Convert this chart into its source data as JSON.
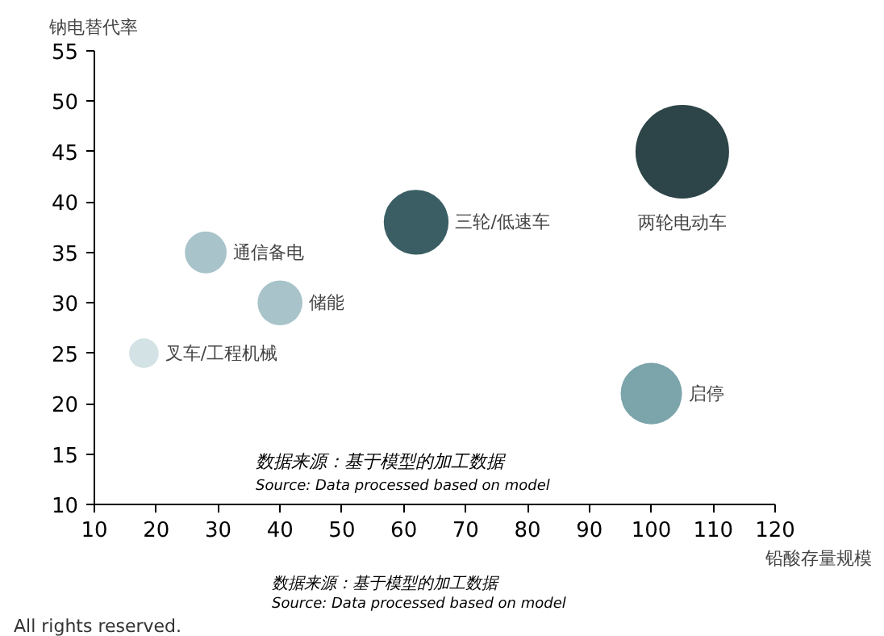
{
  "chart_data": {
    "type": "bubble",
    "ylabel": "钠电替代率",
    "xlabel": "铅酸存量规模",
    "xlim": [
      10,
      120
    ],
    "ylim": [
      10,
      55
    ],
    "xticks": [
      10,
      20,
      30,
      40,
      50,
      60,
      70,
      80,
      90,
      100,
      110,
      120
    ],
    "yticks": [
      10,
      15,
      20,
      25,
      30,
      35,
      40,
      45,
      50,
      55
    ],
    "grid": false,
    "series": [
      {
        "name": "叉车/工程机械",
        "color": "#d3e2e5",
        "x": [
          18
        ],
        "values": [
          25
        ],
        "sizes": [
          0.1
        ]
      },
      {
        "name": "通信备电",
        "color": "#a8c4ca",
        "x": [
          28
        ],
        "values": [
          35
        ],
        "sizes": [
          0.2
        ]
      },
      {
        "name": "储能",
        "color": "#a8c4ca",
        "x": [
          40
        ],
        "values": [
          30
        ],
        "sizes": [
          0.23
        ]
      },
      {
        "name": "三轮/低速车",
        "color": "#3a5e64",
        "x": [
          62
        ],
        "values": [
          38
        ],
        "sizes": [
          0.48
        ]
      },
      {
        "name": "两轮电动车",
        "color": "#2d4448",
        "x": [
          105
        ],
        "values": [
          45
        ],
        "sizes": [
          1
        ]
      },
      {
        "name": "启停",
        "color": "#7ba4ab",
        "x": [
          100
        ],
        "values": [
          21
        ],
        "sizes": [
          0.43
        ]
      }
    ],
    "annotations": [
      "数据来源：基于模型的加工数据",
      "Source: Data processed based on model",
      "数据来源：基于模型的加工数据",
      "Source: Data processed based on model",
      "All rights reserved."
    ]
  }
}
